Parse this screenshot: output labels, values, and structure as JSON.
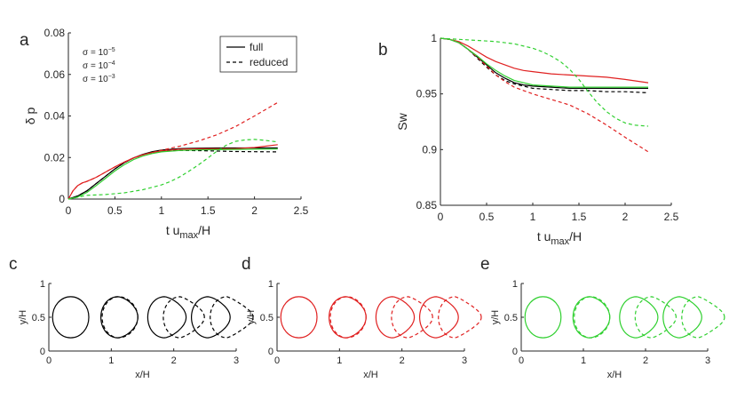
{
  "colors": {
    "black": "#000000",
    "red": "#e02020",
    "green": "#30d030",
    "axis": "#262626"
  },
  "legend": {
    "full": "full",
    "reduced": "reduced"
  },
  "chart_data": [
    {
      "panel": "a",
      "type": "line",
      "xlabel_main": "t u",
      "xlabel_sub": "max",
      "xlabel_tail": "/H",
      "ylabel": "δ p",
      "xlim": [
        0,
        2.5
      ],
      "ylim": [
        0,
        0.08
      ],
      "xticks": [
        0,
        0.5,
        1,
        1.5,
        2,
        2.5
      ],
      "xtick_labels": [
        "0",
        "0.5",
        "1",
        "1.5",
        "2",
        "2.5"
      ],
      "yticks": [
        0,
        0.02,
        0.04,
        0.06,
        0.08
      ],
      "ytick_labels": [
        "0",
        "0.02",
        "0.04",
        "0.06",
        "0.08"
      ],
      "sigma_labels": [
        {
          "text": "σ = 10",
          "exp": "−5",
          "color": "#000000"
        },
        {
          "text": "σ = 10",
          "exp": "−4",
          "color": "#e02020"
        },
        {
          "text": "σ = 10",
          "exp": "−3",
          "color": "#30d030"
        }
      ],
      "legend_position": "top-right",
      "series": [
        {
          "color": "#000000",
          "dash": false,
          "x": [
            0,
            0.1,
            0.2,
            0.3,
            0.4,
            0.5,
            0.6,
            0.7,
            0.8,
            0.9,
            1.0,
            1.2,
            1.4,
            1.6,
            1.8,
            2.0,
            2.25
          ],
          "y": [
            0,
            0.0015,
            0.004,
            0.0075,
            0.011,
            0.0145,
            0.0175,
            0.0198,
            0.0215,
            0.0228,
            0.0236,
            0.0243,
            0.0245,
            0.0246,
            0.0246,
            0.0246,
            0.0246
          ]
        },
        {
          "color": "#000000",
          "dash": true,
          "x": [
            0,
            0.1,
            0.2,
            0.3,
            0.4,
            0.5,
            0.6,
            0.7,
            0.8,
            0.9,
            1.0,
            1.2,
            1.4,
            1.6,
            1.8,
            2.0,
            2.25
          ],
          "y": [
            0,
            0.0015,
            0.004,
            0.0075,
            0.011,
            0.0145,
            0.0175,
            0.0198,
            0.0213,
            0.0224,
            0.0231,
            0.0234,
            0.0233,
            0.0231,
            0.0229,
            0.0228,
            0.0227
          ]
        },
        {
          "color": "#e02020",
          "dash": false,
          "x": [
            0,
            0.05,
            0.1,
            0.15,
            0.2,
            0.3,
            0.4,
            0.5,
            0.6,
            0.7,
            0.8,
            0.9,
            1.0,
            1.2,
            1.4,
            1.6,
            1.8,
            2.0,
            2.25
          ],
          "y": [
            0,
            0.004,
            0.0065,
            0.0078,
            0.0085,
            0.0105,
            0.013,
            0.0155,
            0.0178,
            0.0198,
            0.0213,
            0.0224,
            0.0232,
            0.024,
            0.0242,
            0.0242,
            0.0243,
            0.0248,
            0.0262
          ]
        },
        {
          "color": "#e02020",
          "dash": true,
          "x": [
            0,
            0.05,
            0.1,
            0.15,
            0.2,
            0.3,
            0.4,
            0.5,
            0.6,
            0.7,
            0.8,
            0.9,
            1.0,
            1.2,
            1.4,
            1.6,
            1.8,
            2.0,
            2.25
          ],
          "y": [
            0,
            0.004,
            0.0065,
            0.0078,
            0.0085,
            0.0105,
            0.013,
            0.0155,
            0.0178,
            0.0198,
            0.0213,
            0.0224,
            0.0235,
            0.0255,
            0.028,
            0.031,
            0.035,
            0.04,
            0.0465
          ]
        },
        {
          "color": "#30d030",
          "dash": false,
          "x": [
            0,
            0.1,
            0.2,
            0.3,
            0.4,
            0.5,
            0.6,
            0.7,
            0.8,
            0.9,
            1.0,
            1.2,
            1.4,
            1.6,
            1.8,
            2.0,
            2.25
          ],
          "y": [
            0,
            0.001,
            0.0032,
            0.0065,
            0.01,
            0.0135,
            0.0165,
            0.019,
            0.0207,
            0.0219,
            0.0227,
            0.0234,
            0.0237,
            0.0238,
            0.0239,
            0.024,
            0.0241
          ]
        },
        {
          "color": "#30d030",
          "dash": true,
          "x": [
            0,
            0.2,
            0.4,
            0.6,
            0.8,
            1.0,
            1.1,
            1.2,
            1.3,
            1.4,
            1.5,
            1.6,
            1.7,
            1.8,
            1.9,
            2.0,
            2.1,
            2.25
          ],
          "y": [
            0,
            0.0018,
            0.0022,
            0.003,
            0.0045,
            0.0068,
            0.0085,
            0.0108,
            0.0135,
            0.0165,
            0.0198,
            0.0232,
            0.026,
            0.0278,
            0.0285,
            0.0287,
            0.0283,
            0.0275
          ]
        }
      ]
    },
    {
      "panel": "b",
      "type": "line",
      "xlabel_main": "t u",
      "xlabel_sub": "max",
      "xlabel_tail": "/H",
      "ylabel": "Sw",
      "xlim": [
        0,
        2.5
      ],
      "ylim": [
        0.85,
        1
      ],
      "xticks": [
        0,
        0.5,
        1,
        1.5,
        2,
        2.5
      ],
      "xtick_labels": [
        "0",
        "0.5",
        "1",
        "1.5",
        "2",
        "2.5"
      ],
      "yticks": [
        0.85,
        0.9,
        0.95,
        1
      ],
      "ytick_labels": [
        "0.85",
        "0.9",
        "0.95",
        "1"
      ],
      "series": [
        {
          "color": "#000000",
          "dash": false,
          "x": [
            0,
            0.1,
            0.2,
            0.3,
            0.4,
            0.5,
            0.6,
            0.7,
            0.8,
            0.9,
            1.0,
            1.2,
            1.4,
            1.6,
            1.8,
            2.0,
            2.25
          ],
          "y": [
            1.0,
            0.999,
            0.996,
            0.99,
            0.983,
            0.976,
            0.969,
            0.964,
            0.96,
            0.958,
            0.957,
            0.956,
            0.955,
            0.955,
            0.955,
            0.955,
            0.955
          ]
        },
        {
          "color": "#000000",
          "dash": true,
          "x": [
            0,
            0.1,
            0.2,
            0.3,
            0.4,
            0.5,
            0.6,
            0.7,
            0.8,
            0.9,
            1.0,
            1.2,
            1.4,
            1.6,
            1.8,
            2.0,
            2.25
          ],
          "y": [
            1.0,
            0.999,
            0.996,
            0.99,
            0.982,
            0.974,
            0.967,
            0.962,
            0.959,
            0.957,
            0.955,
            0.954,
            0.953,
            0.953,
            0.952,
            0.952,
            0.951
          ]
        },
        {
          "color": "#e02020",
          "dash": false,
          "x": [
            0,
            0.1,
            0.2,
            0.3,
            0.4,
            0.5,
            0.6,
            0.7,
            0.8,
            0.9,
            1.0,
            1.2,
            1.4,
            1.6,
            1.8,
            2.0,
            2.25
          ],
          "y": [
            1.0,
            0.999,
            0.997,
            0.993,
            0.988,
            0.983,
            0.979,
            0.976,
            0.973,
            0.971,
            0.97,
            0.968,
            0.967,
            0.966,
            0.965,
            0.963,
            0.96
          ]
        },
        {
          "color": "#e02020",
          "dash": true,
          "x": [
            0,
            0.1,
            0.2,
            0.3,
            0.4,
            0.5,
            0.6,
            0.7,
            0.8,
            0.9,
            1.0,
            1.2,
            1.4,
            1.6,
            1.8,
            2.0,
            2.25
          ],
          "y": [
            1.0,
            0.999,
            0.996,
            0.99,
            0.983,
            0.975,
            0.967,
            0.961,
            0.956,
            0.953,
            0.95,
            0.945,
            0.94,
            0.932,
            0.922,
            0.911,
            0.898
          ]
        },
        {
          "color": "#30d030",
          "dash": false,
          "x": [
            0,
            0.1,
            0.2,
            0.3,
            0.4,
            0.5,
            0.6,
            0.7,
            0.8,
            0.9,
            1.0,
            1.2,
            1.4,
            1.6,
            1.8,
            2.0,
            2.25
          ],
          "y": [
            1.0,
            0.999,
            0.996,
            0.99,
            0.984,
            0.977,
            0.971,
            0.966,
            0.962,
            0.96,
            0.958,
            0.957,
            0.956,
            0.956,
            0.956,
            0.956,
            0.956
          ]
        },
        {
          "color": "#30d030",
          "dash": true,
          "x": [
            0,
            0.2,
            0.4,
            0.6,
            0.8,
            1.0,
            1.1,
            1.2,
            1.3,
            1.4,
            1.5,
            1.6,
            1.7,
            1.8,
            1.9,
            2.0,
            2.1,
            2.25
          ],
          "y": [
            1.0,
            0.999,
            0.998,
            0.997,
            0.995,
            0.991,
            0.988,
            0.984,
            0.979,
            0.972,
            0.963,
            0.952,
            0.942,
            0.934,
            0.928,
            0.924,
            0.922,
            0.921
          ]
        }
      ]
    },
    {
      "panel": "c",
      "type": "line",
      "color": "#000000",
      "xlabel": "x/H",
      "ylabel": "y/H",
      "xlim": [
        0,
        3
      ],
      "ylim": [
        0,
        1
      ],
      "xticks": [
        0,
        1,
        2,
        3
      ],
      "xtick_labels": [
        "0",
        "1",
        "2",
        "3"
      ],
      "yticks": [
        0,
        0.5,
        1
      ],
      "ytick_labels": [
        "0",
        "0.5",
        "1"
      ]
    },
    {
      "panel": "d",
      "type": "line",
      "color": "#e02020",
      "xlabel": "x/H",
      "ylabel": "y/H",
      "xlim": [
        0,
        3
      ],
      "ylim": [
        0,
        1
      ],
      "xticks": [
        0,
        1,
        2,
        3
      ],
      "xtick_labels": [
        "0",
        "1",
        "2",
        "3"
      ],
      "yticks": [
        0,
        0.5,
        1
      ],
      "ytick_labels": [
        "0",
        "0.5",
        "1"
      ]
    },
    {
      "panel": "e",
      "type": "line",
      "color": "#30d030",
      "xlabel": "x/H",
      "ylabel": "y/H",
      "xlim": [
        0,
        3
      ],
      "ylim": [
        0,
        1
      ],
      "xticks": [
        0,
        1,
        2,
        3
      ],
      "xtick_labels": [
        "0",
        "1",
        "2",
        "3"
      ],
      "yticks": [
        0,
        0.5,
        1
      ],
      "ytick_labels": [
        "0",
        "0.5",
        "1"
      ]
    }
  ]
}
